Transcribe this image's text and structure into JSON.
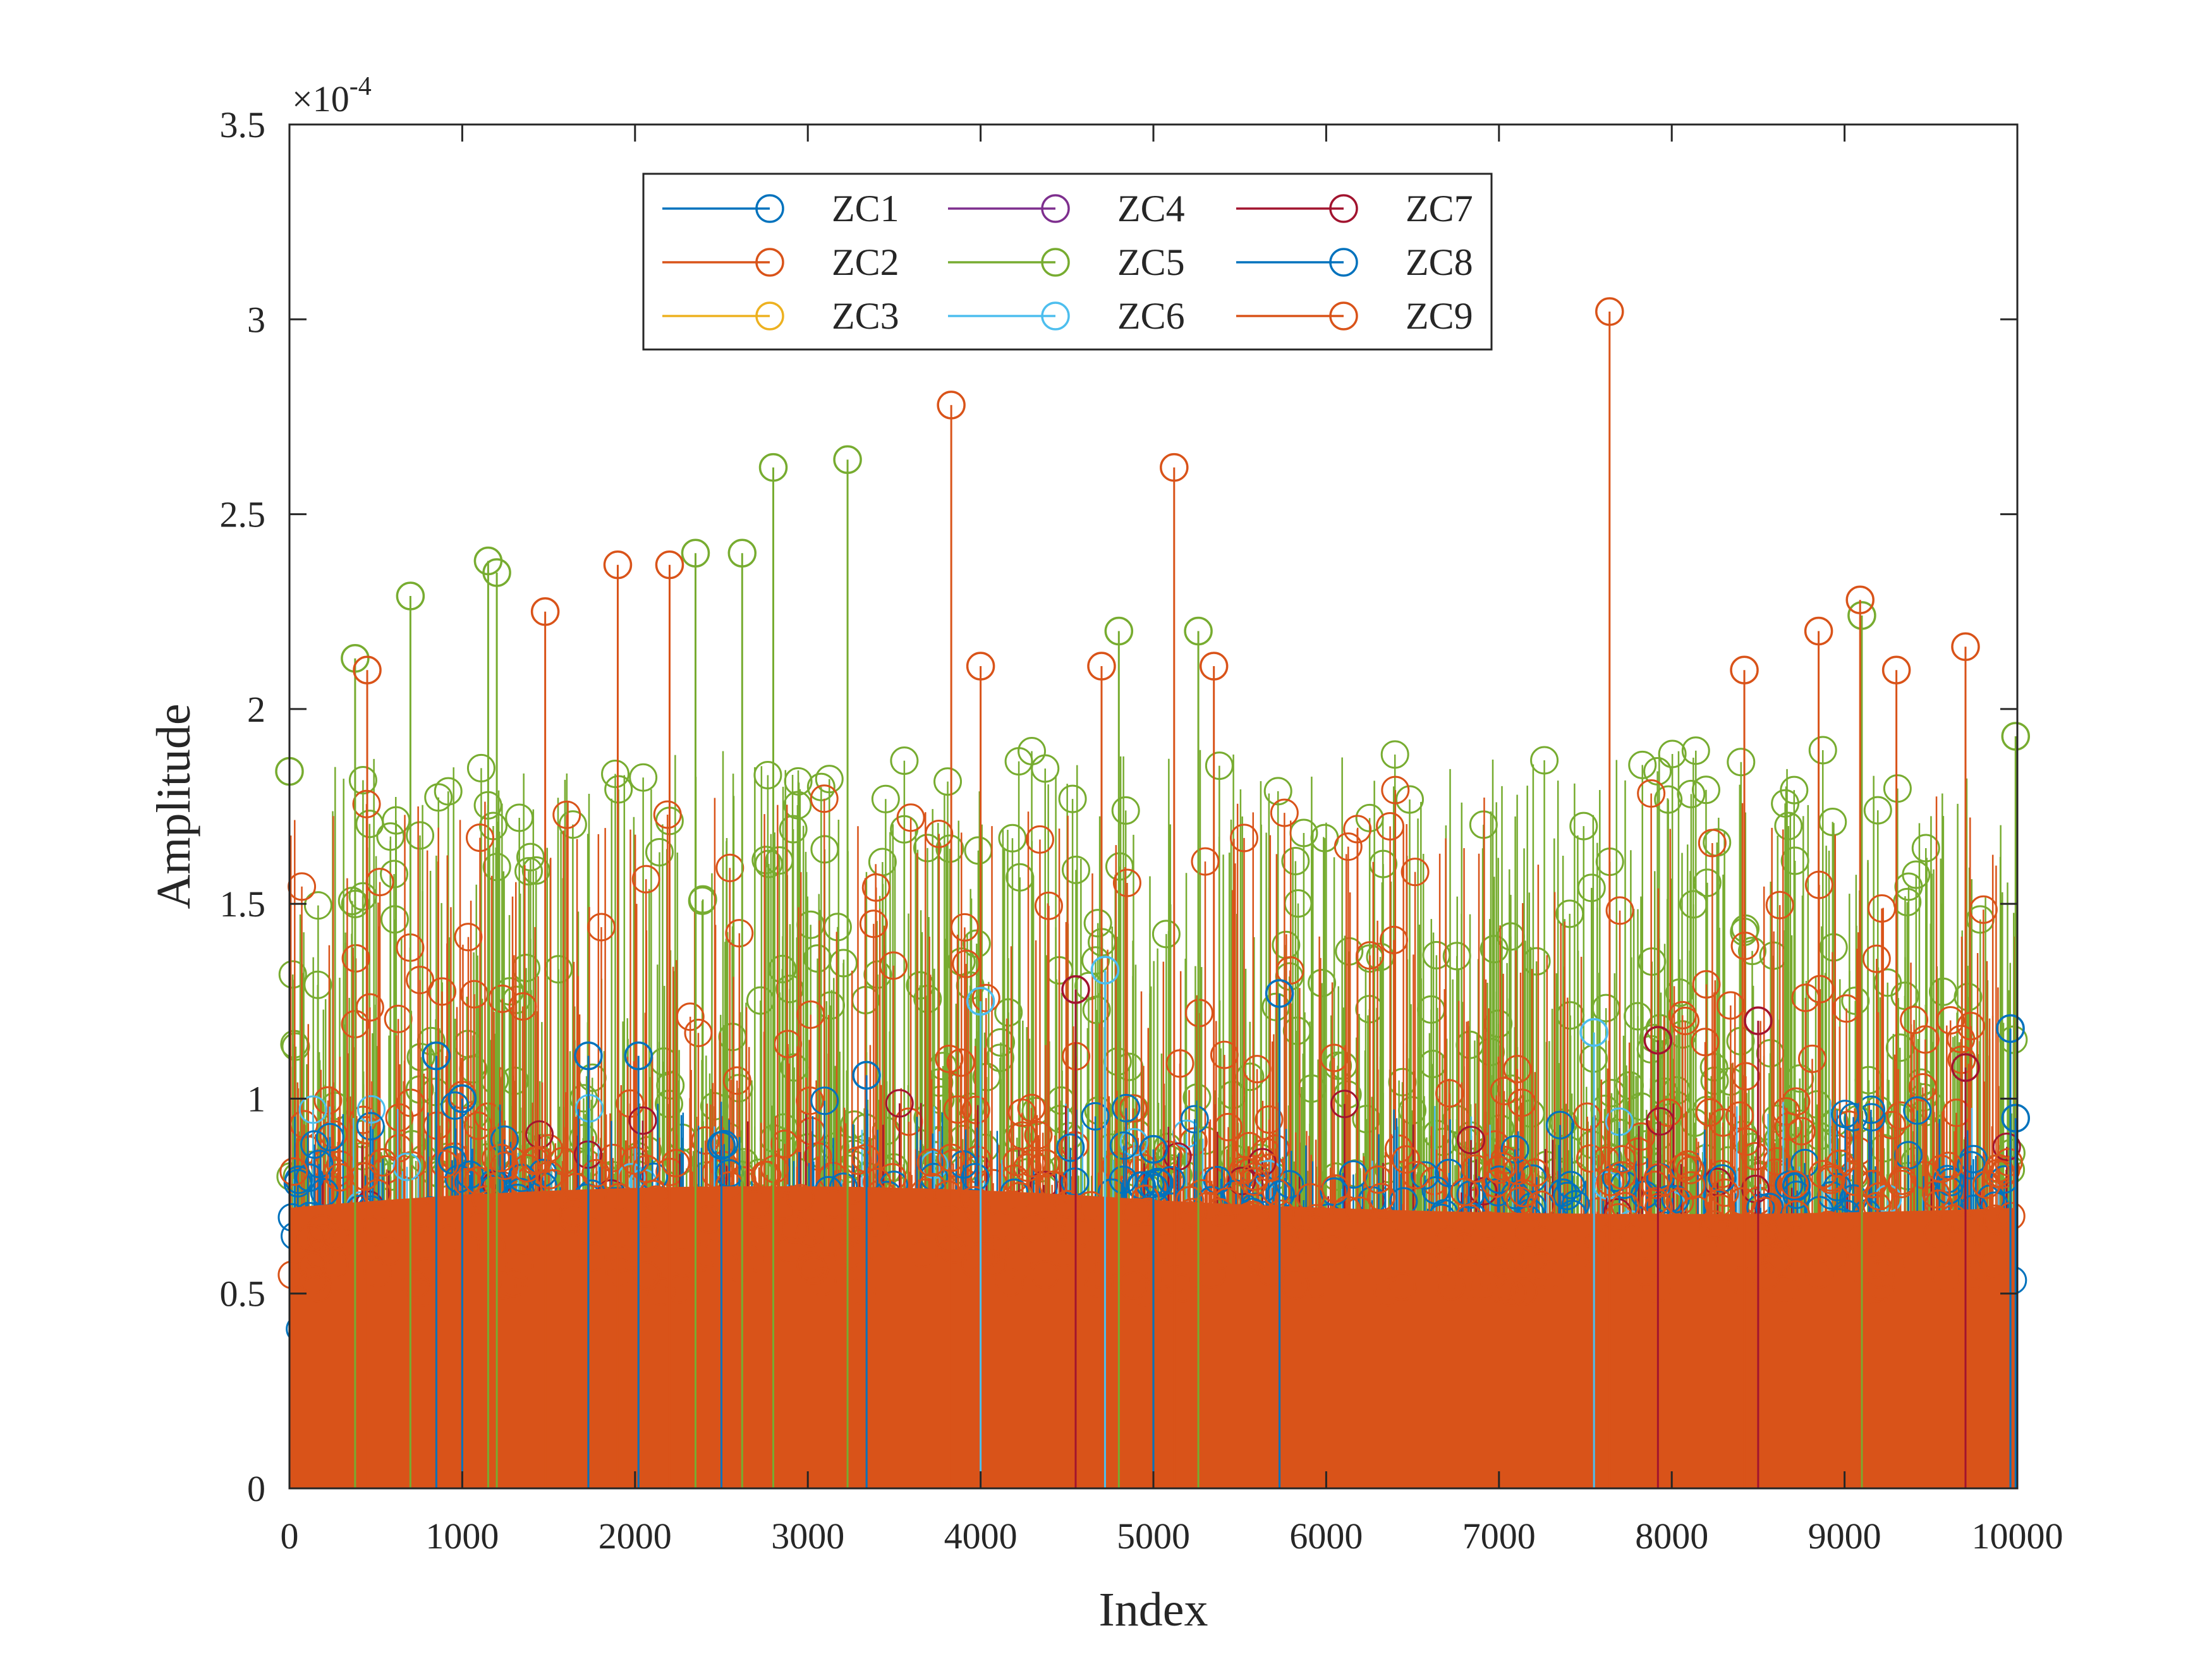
{
  "chart_data": {
    "type": "stem",
    "xlabel": "Index",
    "ylabel": "Amplitude",
    "xlim": [
      0,
      10000
    ],
    "ylim": [
      0,
      0.00035
    ],
    "y_exponent_label": "×10",
    "y_exponent_power": "-4",
    "x_ticks": [
      {
        "value": 0,
        "label": "0"
      },
      {
        "value": 1000,
        "label": "1000"
      },
      {
        "value": 2000,
        "label": "2000"
      },
      {
        "value": 3000,
        "label": "3000"
      },
      {
        "value": 4000,
        "label": "4000"
      },
      {
        "value": 5000,
        "label": "5000"
      },
      {
        "value": 6000,
        "label": "6000"
      },
      {
        "value": 7000,
        "label": "7000"
      },
      {
        "value": 8000,
        "label": "8000"
      },
      {
        "value": 9000,
        "label": "9000"
      },
      {
        "value": 10000,
        "label": "10000"
      }
    ],
    "y_ticks": [
      {
        "value": 0,
        "label": "0"
      },
      {
        "value": 5e-05,
        "label": "0.5"
      },
      {
        "value": 0.0001,
        "label": "1"
      },
      {
        "value": 0.00015,
        "label": "1.5"
      },
      {
        "value": 0.0002,
        "label": "2"
      },
      {
        "value": 0.00025,
        "label": "2.5"
      },
      {
        "value": 0.0003,
        "label": "3"
      },
      {
        "value": 0.00035,
        "label": "3.5"
      }
    ],
    "legend_position": "top-center",
    "legend_columns": 3,
    "series": [
      {
        "name": "ZC1",
        "color": "#0072BD",
        "base_level": 5e-05,
        "spikes": [
          [
            1000,
            0.0001
          ],
          [
            2500,
            8.8e-05
          ],
          [
            5000,
            8.7e-05
          ],
          [
            9990,
            9.5e-05
          ]
        ]
      },
      {
        "name": "ZC2",
        "color": "#D95319",
        "base_level": 0.000105,
        "spikes": [
          [
            450,
            0.00021
          ],
          [
            1900,
            0.000237
          ],
          [
            2200,
            0.000237
          ],
          [
            1480,
            0.000225
          ],
          [
            4000,
            0.000211
          ],
          [
            4700,
            0.000211
          ],
          [
            5120,
            0.000262
          ],
          [
            5350,
            0.000211
          ],
          [
            8420,
            0.00021
          ],
          [
            8850,
            0.00022
          ],
          [
            9090,
            0.000228
          ],
          [
            9300,
            0.00021
          ],
          [
            9700,
            0.000216
          ]
        ]
      },
      {
        "name": "ZC3",
        "color": "#EDB120",
        "base_level": 5e-05,
        "spikes": []
      },
      {
        "name": "ZC4",
        "color": "#7E2F8E",
        "base_level": 5e-05,
        "spikes": []
      },
      {
        "name": "ZC5",
        "color": "#77AC30",
        "base_level": 0.00012,
        "spikes": [
          [
            0,
            0.000184
          ],
          [
            380,
            0.000213
          ],
          [
            700,
            0.000229
          ],
          [
            1150,
            0.000238
          ],
          [
            1200,
            0.000235
          ],
          [
            2350,
            0.00024
          ],
          [
            2620,
            0.00024
          ],
          [
            2800,
            0.000262
          ],
          [
            3230,
            0.000264
          ],
          [
            4800,
            0.00022
          ],
          [
            5260,
            0.00022
          ],
          [
            9100,
            0.000224
          ],
          [
            9990,
            0.000193
          ]
        ]
      },
      {
        "name": "ZC6",
        "color": "#4DBEEE",
        "base_level": 6e-05,
        "spikes": [
          [
            4000,
            0.000125
          ],
          [
            4720,
            0.000133
          ],
          [
            7550,
            0.000117
          ]
        ]
      },
      {
        "name": "ZC7",
        "color": "#A2142F",
        "base_level": 6e-05,
        "spikes": [
          [
            4550,
            0.000128
          ],
          [
            7920,
            0.000115
          ],
          [
            8500,
            0.00012
          ],
          [
            9700,
            0.000108
          ]
        ]
      },
      {
        "name": "ZC8",
        "color": "#0072BD",
        "base_level": 6e-05,
        "spikes": [
          [
            850,
            0.000111
          ],
          [
            1730,
            0.000111
          ],
          [
            2020,
            0.000111
          ],
          [
            3340,
            0.000106
          ],
          [
            5730,
            0.000127
          ],
          [
            9960,
            0.000118
          ]
        ]
      },
      {
        "name": "ZC9",
        "color": "#D95319",
        "base_level": 7e-05,
        "spikes": [
          [
            3830,
            0.000278
          ],
          [
            7640,
            0.000302
          ]
        ]
      }
    ]
  }
}
